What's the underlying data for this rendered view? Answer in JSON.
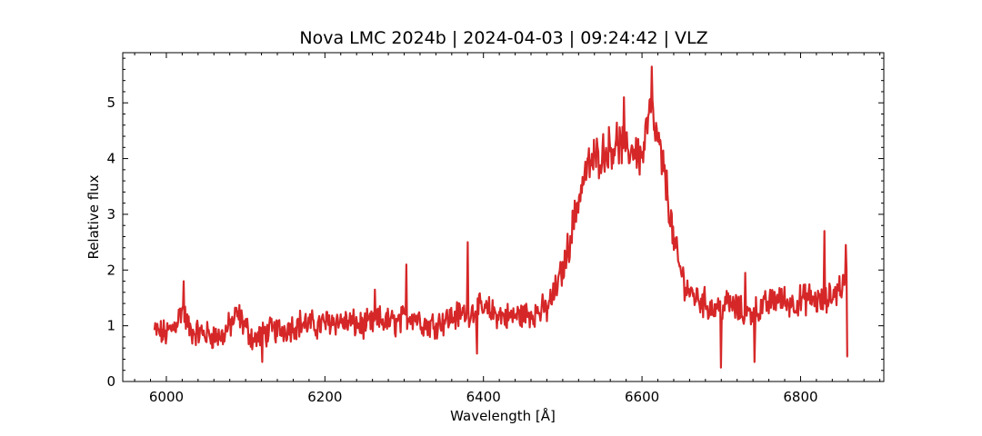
{
  "chart_data": {
    "type": "line",
    "title": "Nova LMC 2024b | 2024-04-03 | 09:24:42 | VLZ",
    "xlabel": "Wavelength [Å]",
    "ylabel": "Relative flux",
    "xlim": [
      5945,
      6905
    ],
    "ylim": [
      0,
      5.9
    ],
    "xticks": [
      6000,
      6200,
      6400,
      6600,
      6800
    ],
    "yticks": [
      0,
      1,
      2,
      3,
      4,
      5
    ],
    "grid": false,
    "series": [
      {
        "color": "#d62728",
        "points": [
          [
            5985,
            0.9
          ],
          [
            6000,
            0.85
          ],
          [
            6010,
            1.0
          ],
          [
            6020,
            1.3
          ],
          [
            6030,
            0.9
          ],
          [
            6050,
            0.85
          ],
          [
            6070,
            0.8
          ],
          [
            6090,
            1.2
          ],
          [
            6110,
            0.75
          ],
          [
            6130,
            0.9
          ],
          [
            6150,
            0.95
          ],
          [
            6170,
            1.05
          ],
          [
            6190,
            1.0
          ],
          [
            6210,
            1.1
          ],
          [
            6230,
            1.05
          ],
          [
            6250,
            1.0
          ],
          [
            6270,
            1.1
          ],
          [
            6290,
            1.05
          ],
          [
            6310,
            1.2
          ],
          [
            6330,
            1.0
          ],
          [
            6350,
            1.1
          ],
          [
            6370,
            1.2
          ],
          [
            6390,
            1.3
          ],
          [
            6410,
            1.25
          ],
          [
            6430,
            1.15
          ],
          [
            6450,
            1.2
          ],
          [
            6470,
            1.25
          ],
          [
            6480,
            1.3
          ],
          [
            6490,
            1.6
          ],
          [
            6500,
            2.0
          ],
          [
            6510,
            2.6
          ],
          [
            6520,
            3.3
          ],
          [
            6530,
            3.8
          ],
          [
            6540,
            4.0
          ],
          [
            6550,
            4.1
          ],
          [
            6560,
            4.2
          ],
          [
            6570,
            4.3
          ],
          [
            6580,
            4.1
          ],
          [
            6590,
            4.2
          ],
          [
            6600,
            4.0
          ],
          [
            6610,
            4.9
          ],
          [
            6620,
            4.3
          ],
          [
            6630,
            3.6
          ],
          [
            6640,
            2.5
          ],
          [
            6650,
            1.9
          ],
          [
            6660,
            1.6
          ],
          [
            6670,
            1.5
          ],
          [
            6690,
            1.3
          ],
          [
            6710,
            1.4
          ],
          [
            6730,
            1.2
          ],
          [
            6750,
            1.3
          ],
          [
            6770,
            1.5
          ],
          [
            6790,
            1.4
          ],
          [
            6810,
            1.5
          ],
          [
            6830,
            1.4
          ],
          [
            6850,
            1.7
          ],
          [
            6858,
            1.8
          ],
          [
            6860,
            0.45
          ]
        ],
        "noise": 0.28,
        "spikes": [
          [
            6022,
            1.8
          ],
          [
            6121,
            0.35
          ],
          [
            6263,
            1.65
          ],
          [
            6303,
            2.1
          ],
          [
            6380,
            2.5
          ],
          [
            6392,
            0.5
          ],
          [
            6577,
            5.1
          ],
          [
            6612,
            5.65
          ],
          [
            6700,
            0.25
          ],
          [
            6730,
            1.95
          ],
          [
            6742,
            0.35
          ],
          [
            6830,
            2.7
          ],
          [
            6857,
            2.45
          ]
        ]
      }
    ]
  }
}
